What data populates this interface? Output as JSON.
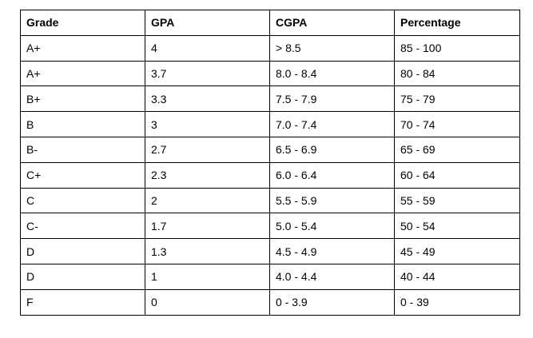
{
  "table": {
    "headers": [
      "Grade",
      "GPA",
      "CGPA",
      "Percentage"
    ],
    "rows": [
      [
        "A+",
        "4",
        "> 8.5",
        "85 - 100"
      ],
      [
        "A+",
        "3.7",
        "8.0 - 8.4",
        "80 - 84"
      ],
      [
        "B+",
        "3.3",
        "7.5 - 7.9",
        "75 - 79"
      ],
      [
        "B",
        "3",
        "7.0 - 7.4",
        "70 - 74"
      ],
      [
        "B-",
        "2.7",
        "6.5 - 6.9",
        "65 - 69"
      ],
      [
        "C+",
        "2.3",
        "6.0 - 6.4",
        "60 - 64"
      ],
      [
        "C",
        "2",
        "5.5 - 5.9",
        "55 - 59"
      ],
      [
        "C-",
        "1.7",
        "5.0 - 5.4",
        "50 - 54"
      ],
      [
        "D",
        "1.3",
        "4.5 - 4.9",
        "45 - 49"
      ],
      [
        "D",
        "1",
        "4.0 - 4.4",
        "40 - 44"
      ],
      [
        "F",
        "0",
        "0 - 3.9",
        "0 - 39"
      ]
    ]
  }
}
